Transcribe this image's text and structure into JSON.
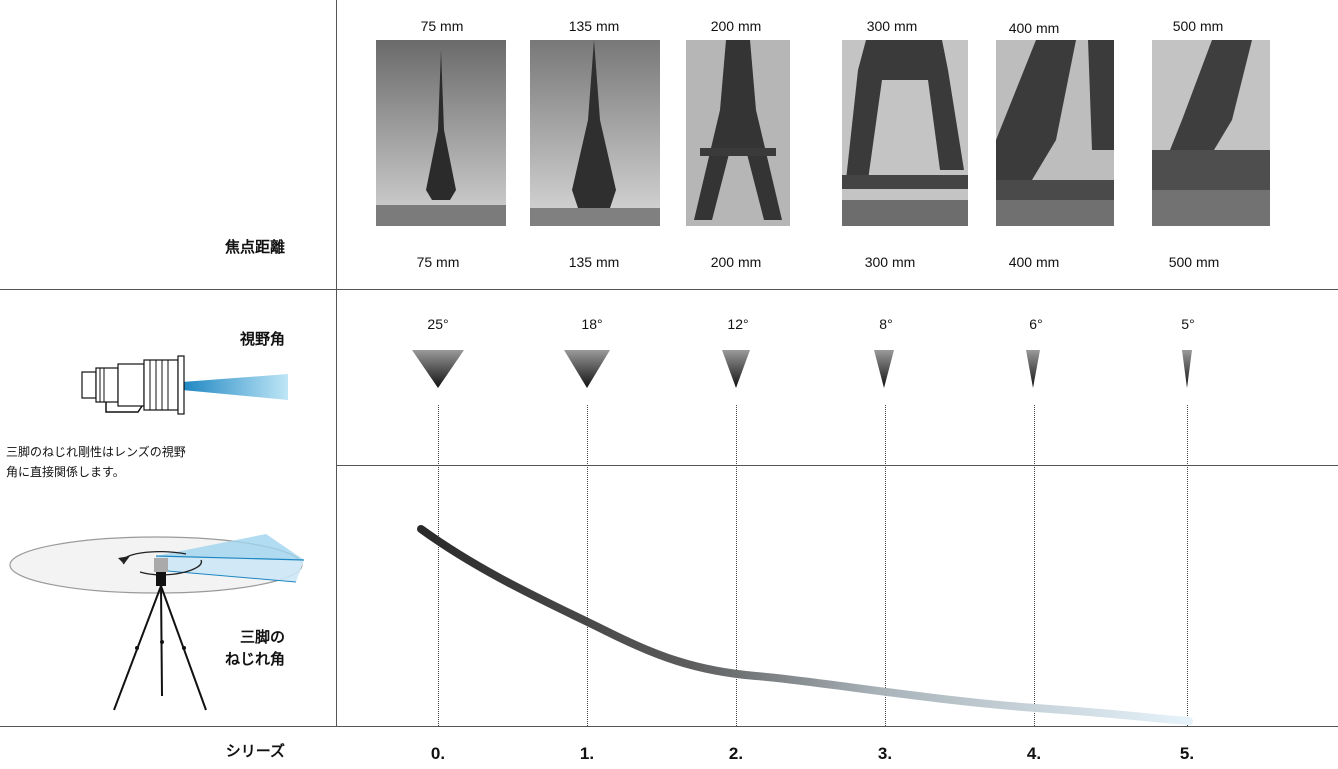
{
  "row_labels": {
    "focal_length": "焦点距離",
    "view_angle": "視野角",
    "tripod_twist": [
      "三脚の",
      "ねじれ角"
    ],
    "series": "シリーズ"
  },
  "description": [
    "三脚のねじれ剛性はレンズの視野",
    "角に直接関係します。"
  ],
  "columns": [
    {
      "focal_top": "75 mm",
      "focal_bottom": "75 mm",
      "angle": "25°",
      "series": "0."
    },
    {
      "focal_top": "135 mm",
      "focal_bottom": "135 mm",
      "angle": "18°",
      "series": "1."
    },
    {
      "focal_top": "200 mm",
      "focal_bottom": "200 mm",
      "angle": "12°",
      "series": "2."
    },
    {
      "focal_top": "300 mm",
      "focal_bottom": "300 mm",
      "angle": "8°",
      "series": "3."
    },
    {
      "focal_top": "400 mm",
      "focal_bottom": "400 mm",
      "angle": "6°",
      "series": "4."
    },
    {
      "focal_top": "500 mm",
      "focal_bottom": "500 mm",
      "angle": "5°",
      "series": "5."
    }
  ],
  "colors": {
    "curve_start": "#2a2a2a",
    "curve_end": "#e6f3fa",
    "lens_beam": "#3aa8d8",
    "rule": "#555555"
  },
  "icons": [
    "telephoto-lens-icon",
    "tripod-icon",
    "rotation-arrow-icon"
  ]
}
